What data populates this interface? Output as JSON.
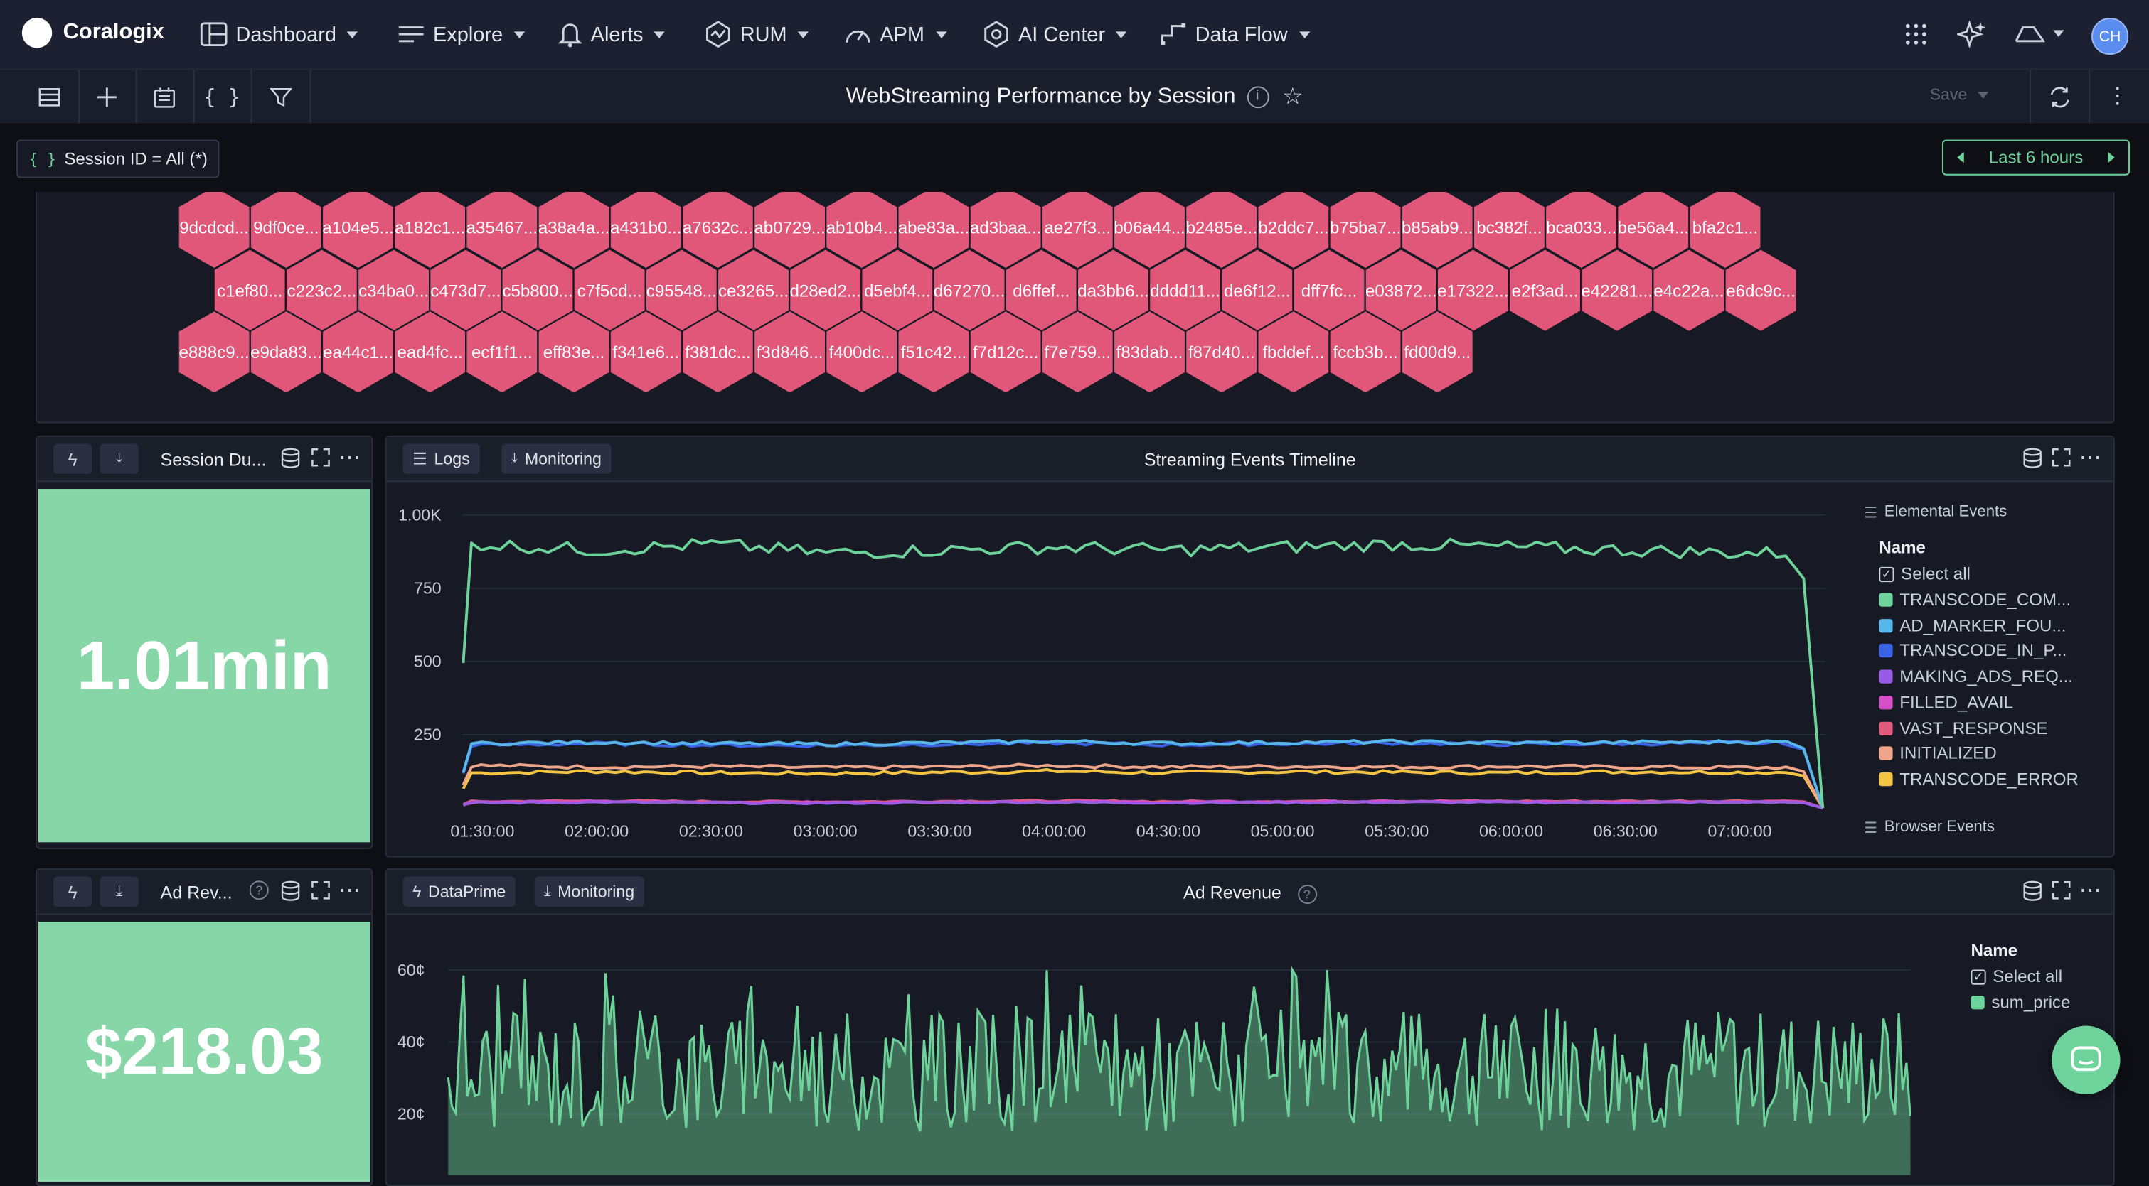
{
  "app": {
    "brand": "Coralogix",
    "nav": [
      {
        "label": "Dashboard",
        "icon": "dashboard-icon"
      },
      {
        "label": "Explore",
        "icon": "explore-icon"
      },
      {
        "label": "Alerts",
        "icon": "bell-icon"
      },
      {
        "label": "RUM",
        "icon": "rum-icon"
      },
      {
        "label": "APM",
        "icon": "gauge-icon"
      },
      {
        "label": "AI Center",
        "icon": "ai-center-icon"
      },
      {
        "label": "Data Flow",
        "icon": "data-flow-icon"
      }
    ],
    "avatar_initials": "CH"
  },
  "toolbar": {
    "title": "WebStreaming Performance by Session",
    "save_label": "Save"
  },
  "filter": {
    "chip_label": "Session ID = All (*)",
    "time_range": "Last 6 hours"
  },
  "hexmap": {
    "color": "#e0577a",
    "rows": [
      [
        "9dcdcd...",
        "9df0ce...",
        "a104e5...",
        "a182c1...",
        "a35467...",
        "a38a4a...",
        "a431b0...",
        "a7632c...",
        "ab0729...",
        "ab10b4...",
        "abe83a...",
        "ad3baa...",
        "ae27f3...",
        "b06a44...",
        "b2485e...",
        "b2ddc7...",
        "b75ba7...",
        "b85ab9...",
        "bc382f...",
        "bca033...",
        "be56a4...",
        "bfa2c1..."
      ],
      [
        "c1ef80...",
        "c223c2...",
        "c34ba0...",
        "c473d7...",
        "c5b800...",
        "c7f5cd...",
        "c95548...",
        "ce3265...",
        "d28ed2...",
        "d5ebf4...",
        "d67270...",
        "d6ffef...",
        "da3bb6...",
        "dddd11...",
        "de6f12...",
        "dff7fc...",
        "e03872...",
        "e17322...",
        "e2f3ad...",
        "e42281...",
        "e4c22a...",
        "e6dc9c..."
      ],
      [
        "e888c9...",
        "e9da83...",
        "ea44c1...",
        "ead4fc...",
        "ecf1f1...",
        "eff83e...",
        "f341e6...",
        "f381dc...",
        "f3d846...",
        "f400dc...",
        "f51c42...",
        "f7d12c...",
        "f7e759...",
        "f83dab...",
        "f87d40...",
        "fbddef...",
        "fccb3b...",
        "fd00d9..."
      ]
    ]
  },
  "panels": {
    "session_duration": {
      "title": "Session Du...",
      "value": "1.01min",
      "color": "#86d6a8"
    },
    "ad_revenue_stat": {
      "title": "Ad Rev...",
      "value": "$218.03",
      "color": "#86d6a8"
    },
    "timeline": {
      "title": "Streaming Events Timeline",
      "chips": [
        "Logs",
        "Monitoring"
      ],
      "legend_group": "Elemental Events",
      "legend_header": "Name",
      "select_all": "Select all",
      "footer_group": "Browser Events"
    },
    "ad_revenue": {
      "title": "Ad Revenue",
      "chips": [
        "DataPrime",
        "Monitoring"
      ],
      "legend_header": "Name",
      "select_all": "Select all"
    }
  },
  "chart_data": [
    {
      "type": "line",
      "title": "Streaming Events Timeline",
      "x": [
        "01:30:00",
        "02:00:00",
        "02:30:00",
        "03:00:00",
        "03:30:00",
        "04:00:00",
        "04:30:00",
        "05:00:00",
        "05:30:00",
        "06:00:00",
        "06:30:00",
        "07:00:00"
      ],
      "yticks": [
        "250",
        "500",
        "750",
        "1.00K"
      ],
      "ylim": [
        0,
        1000
      ],
      "series": [
        {
          "name": "TRANSCODE_COM...",
          "color": "#6ed39a",
          "values": [
            900,
            880,
            900,
            870,
            880,
            890,
            880,
            890,
            900,
            890,
            880,
            870
          ]
        },
        {
          "name": "AD_MARKER_FOU...",
          "color": "#58b7ea",
          "values": [
            220,
            225,
            220,
            218,
            222,
            228,
            220,
            224,
            226,
            222,
            224,
            226
          ]
        },
        {
          "name": "TRANSCODE_IN_P...",
          "color": "#3a63e8",
          "values": [
            215,
            220,
            215,
            214,
            218,
            222,
            216,
            220,
            222,
            218,
            220,
            222
          ]
        },
        {
          "name": "MAKING_ADS_REQ...",
          "color": "#9a5ae8",
          "values": [
            18,
            20,
            18,
            17,
            19,
            20,
            18,
            19,
            20,
            19,
            19,
            20
          ]
        },
        {
          "name": "FILLED_AVAIL",
          "color": "#d54fc8",
          "values": [
            20,
            22,
            20,
            19,
            21,
            22,
            20,
            21,
            22,
            21,
            21,
            22
          ]
        },
        {
          "name": "VAST_RESPONSE",
          "color": "#e05a7e",
          "values": [
            22,
            24,
            22,
            21,
            23,
            24,
            22,
            23,
            24,
            23,
            23,
            24
          ]
        },
        {
          "name": "INITIALIZED",
          "color": "#f0a48a",
          "values": [
            145,
            140,
            142,
            138,
            140,
            145,
            140,
            142,
            140,
            142,
            140,
            138
          ]
        },
        {
          "name": "TRANSCODE_ERROR",
          "color": "#f4c542",
          "values": [
            120,
            125,
            120,
            118,
            122,
            126,
            120,
            124,
            122,
            120,
            124,
            122
          ]
        }
      ],
      "legend_placement": "right"
    },
    {
      "type": "area",
      "title": "Ad Revenue",
      "yticks": [
        "20¢",
        "40¢",
        "60¢"
      ],
      "ylim": [
        0,
        70
      ],
      "series": [
        {
          "name": "sum_price",
          "color": "#6ed39a"
        }
      ],
      "legend_placement": "right"
    }
  ]
}
